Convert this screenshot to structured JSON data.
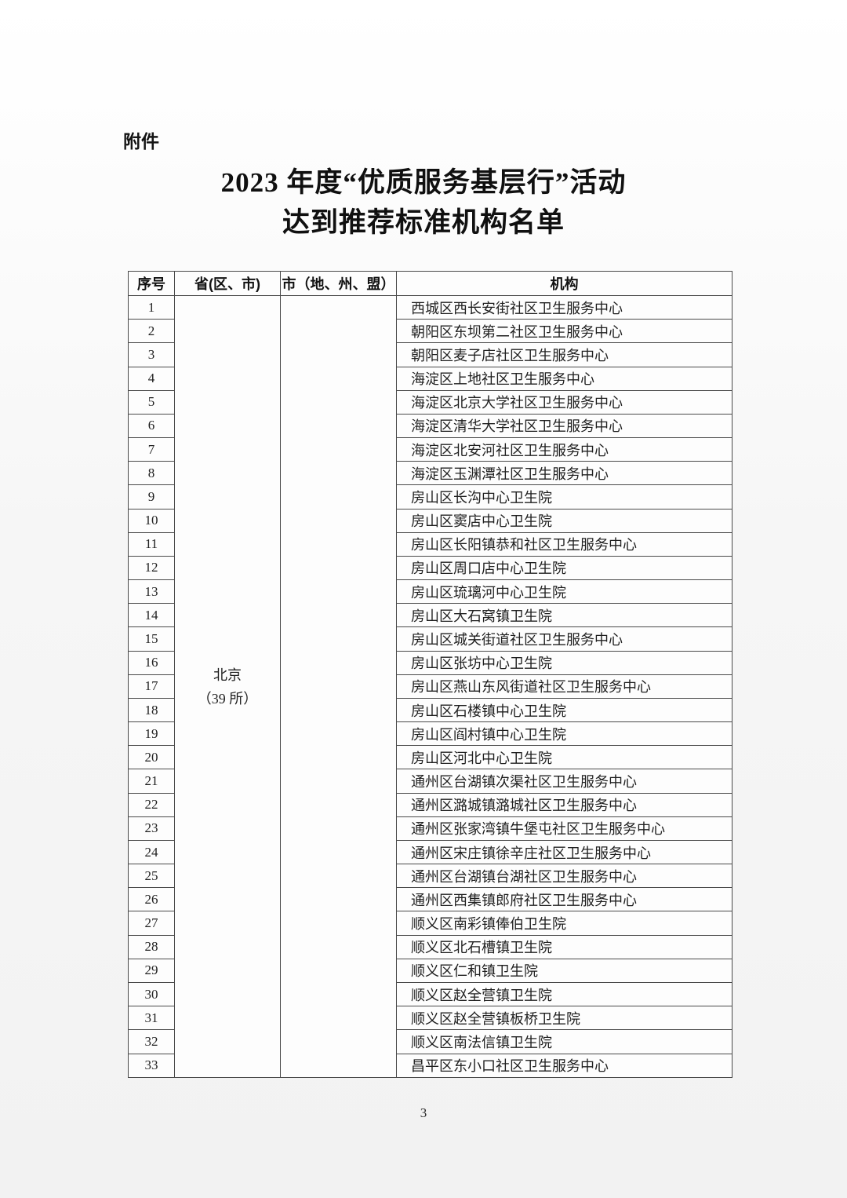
{
  "page": {
    "attachment_label": "附件",
    "title_line1": "2023 年度“优质服务基层行”活动",
    "title_line2": "达到推荐标准机构名单",
    "page_number": "3"
  },
  "table": {
    "headers": [
      "序号",
      "省(区、市)",
      "市（地、州、盟）",
      "机构"
    ],
    "province": "北京",
    "province_count": "（39 所）",
    "city": "",
    "rows": [
      {
        "num": "1",
        "org": "西城区西长安街社区卫生服务中心"
      },
      {
        "num": "2",
        "org": "朝阳区东坝第二社区卫生服务中心"
      },
      {
        "num": "3",
        "org": "朝阳区麦子店社区卫生服务中心"
      },
      {
        "num": "4",
        "org": "海淀区上地社区卫生服务中心"
      },
      {
        "num": "5",
        "org": "海淀区北京大学社区卫生服务中心"
      },
      {
        "num": "6",
        "org": "海淀区清华大学社区卫生服务中心"
      },
      {
        "num": "7",
        "org": "海淀区北安河社区卫生服务中心"
      },
      {
        "num": "8",
        "org": "海淀区玉渊潭社区卫生服务中心"
      },
      {
        "num": "9",
        "org": "房山区长沟中心卫生院"
      },
      {
        "num": "10",
        "org": "房山区窦店中心卫生院"
      },
      {
        "num": "11",
        "org": "房山区长阳镇恭和社区卫生服务中心"
      },
      {
        "num": "12",
        "org": "房山区周口店中心卫生院"
      },
      {
        "num": "13",
        "org": "房山区琉璃河中心卫生院"
      },
      {
        "num": "14",
        "org": "房山区大石窝镇卫生院"
      },
      {
        "num": "15",
        "org": "房山区城关街道社区卫生服务中心"
      },
      {
        "num": "16",
        "org": "房山区张坊中心卫生院"
      },
      {
        "num": "17",
        "org": "房山区燕山东风街道社区卫生服务中心"
      },
      {
        "num": "18",
        "org": "房山区石楼镇中心卫生院"
      },
      {
        "num": "19",
        "org": "房山区阎村镇中心卫生院"
      },
      {
        "num": "20",
        "org": "房山区河北中心卫生院"
      },
      {
        "num": "21",
        "org": "通州区台湖镇次渠社区卫生服务中心"
      },
      {
        "num": "22",
        "org": "通州区潞城镇潞城社区卫生服务中心"
      },
      {
        "num": "23",
        "org": "通州区张家湾镇牛堡屯社区卫生服务中心"
      },
      {
        "num": "24",
        "org": "通州区宋庄镇徐辛庄社区卫生服务中心"
      },
      {
        "num": "25",
        "org": "通州区台湖镇台湖社区卫生服务中心"
      },
      {
        "num": "26",
        "org": "通州区西集镇郎府社区卫生服务中心"
      },
      {
        "num": "27",
        "org": "顺义区南彩镇俸伯卫生院"
      },
      {
        "num": "28",
        "org": "顺义区北石槽镇卫生院"
      },
      {
        "num": "29",
        "org": "顺义区仁和镇卫生院"
      },
      {
        "num": "30",
        "org": "顺义区赵全营镇卫生院"
      },
      {
        "num": "31",
        "org": "顺义区赵全营镇板桥卫生院"
      },
      {
        "num": "32",
        "org": "顺义区南法信镇卫生院"
      },
      {
        "num": "33",
        "org": "昌平区东小口社区卫生服务中心"
      }
    ]
  }
}
